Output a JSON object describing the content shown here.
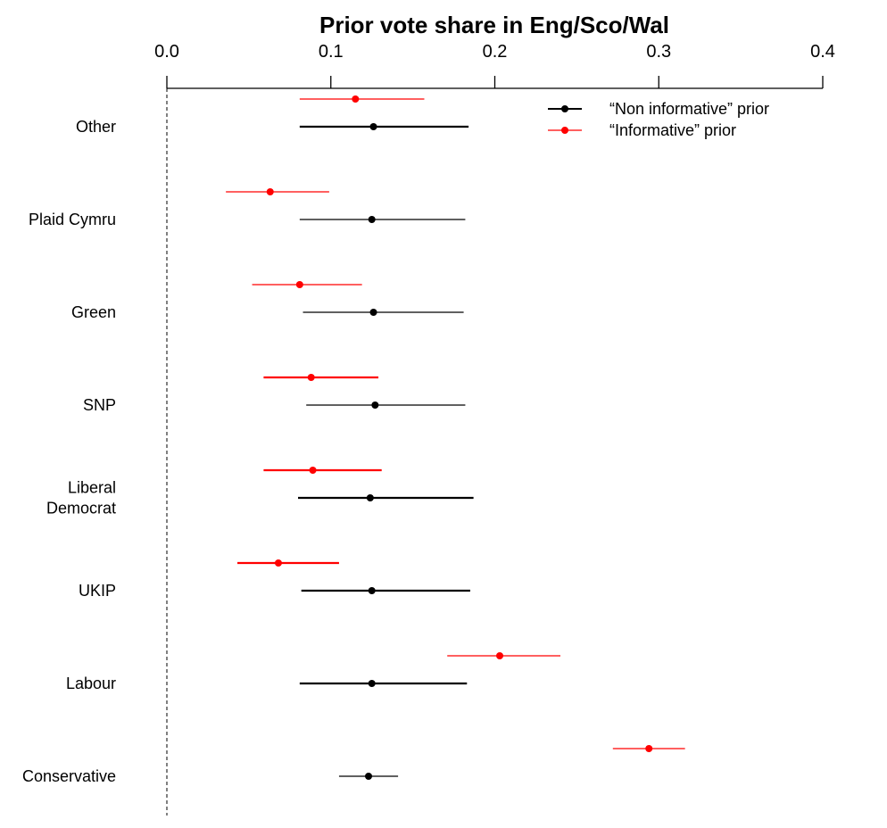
{
  "chart_data": {
    "type": "forest",
    "title": "Prior vote share in Eng/Sco/Wal",
    "x_axis": {
      "position": "top",
      "range": [
        0.0,
        0.4
      ],
      "ticks": [
        0.0,
        0.1,
        0.2,
        0.3,
        0.4
      ],
      "tick_labels": [
        "0.0",
        "0.1",
        "0.2",
        "0.3",
        "0.4"
      ],
      "reference_line": 0.0
    },
    "categories": [
      [
        "Other"
      ],
      [
        "Plaid Cymru"
      ],
      [
        "Green"
      ],
      [
        "SNP"
      ],
      [
        "Liberal",
        "Democrat"
      ],
      [
        "UKIP"
      ],
      [
        "Labour"
      ],
      [
        "Conservative"
      ]
    ],
    "series": [
      {
        "name": "“Non informative” prior",
        "color": "#000000",
        "points": [
          {
            "est": 0.126,
            "lo": 0.081,
            "hi": 0.184,
            "thick": true
          },
          {
            "est": 0.125,
            "lo": 0.081,
            "hi": 0.182,
            "thick": false
          },
          {
            "est": 0.126,
            "lo": 0.083,
            "hi": 0.181,
            "thick": false
          },
          {
            "est": 0.127,
            "lo": 0.085,
            "hi": 0.182,
            "thick": false
          },
          {
            "est": 0.124,
            "lo": 0.08,
            "hi": 0.187,
            "thick": true
          },
          {
            "est": 0.125,
            "lo": 0.082,
            "hi": 0.185,
            "thick": true
          },
          {
            "est": 0.125,
            "lo": 0.081,
            "hi": 0.183,
            "thick": true
          },
          {
            "est": 0.123,
            "lo": 0.105,
            "hi": 0.141,
            "thick": false
          }
        ]
      },
      {
        "name": "“Informative” prior",
        "color": "#ff0000",
        "points": [
          {
            "est": 0.115,
            "lo": 0.081,
            "hi": 0.157,
            "thick": false
          },
          {
            "est": 0.063,
            "lo": 0.036,
            "hi": 0.099,
            "thick": false
          },
          {
            "est": 0.081,
            "lo": 0.052,
            "hi": 0.119,
            "thick": false
          },
          {
            "est": 0.088,
            "lo": 0.059,
            "hi": 0.129,
            "thick": true
          },
          {
            "est": 0.089,
            "lo": 0.059,
            "hi": 0.131,
            "thick": true
          },
          {
            "est": 0.068,
            "lo": 0.043,
            "hi": 0.105,
            "thick": true
          },
          {
            "est": 0.203,
            "lo": 0.171,
            "hi": 0.24,
            "thick": false
          },
          {
            "est": 0.294,
            "lo": 0.272,
            "hi": 0.316,
            "thick": false
          }
        ]
      }
    ],
    "legend": {
      "placement": "top-right",
      "entries": [
        "“Non informative” prior",
        "“Informative” prior"
      ]
    }
  }
}
